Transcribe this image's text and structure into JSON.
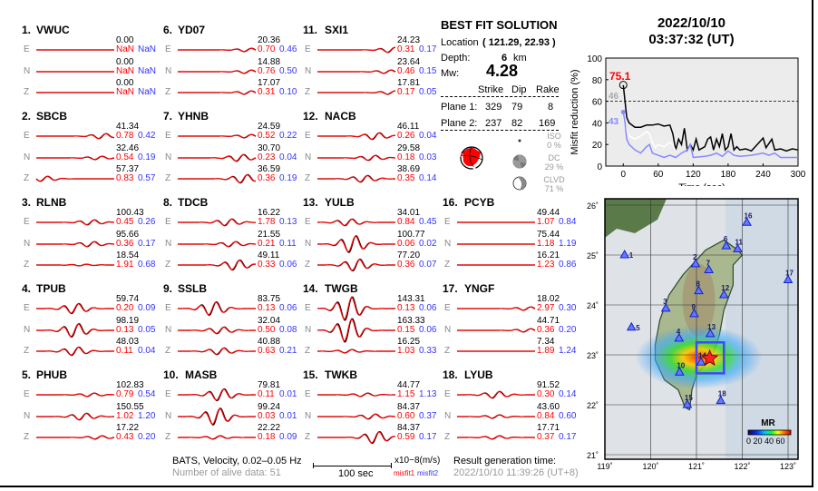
{
  "stations": [
    {
      "num": "1.",
      "name": "VWUC",
      "channels": [
        {
          "comp": "E",
          "peak": "0.00",
          "misfit1": "NaN",
          "misfit2": "NaN"
        },
        {
          "comp": "N",
          "peak": "0.00",
          "misfit1": "NaN",
          "misfit2": "NaN"
        },
        {
          "comp": "Z",
          "peak": "0.00",
          "misfit1": "NaN",
          "misfit2": "NaN"
        }
      ]
    },
    {
      "num": "2.",
      "name": "SBCB",
      "channels": [
        {
          "comp": "E",
          "peak": "41.34",
          "misfit1": "0.78",
          "misfit2": "0.42"
        },
        {
          "comp": "N",
          "peak": "32.46",
          "misfit1": "0.54",
          "misfit2": "0.19"
        },
        {
          "comp": "Z",
          "peak": "57.37",
          "misfit1": "0.83",
          "misfit2": "0.57"
        }
      ]
    },
    {
      "num": "3.",
      "name": "RLNB",
      "channels": [
        {
          "comp": "E",
          "peak": "100.43",
          "misfit1": "0.45",
          "misfit2": "0.26"
        },
        {
          "comp": "N",
          "peak": "95.66",
          "misfit1": "0.36",
          "misfit2": "0.17"
        },
        {
          "comp": "Z",
          "peak": "18.54",
          "misfit1": "1.91",
          "misfit2": "0.68"
        }
      ]
    },
    {
      "num": "4.",
      "name": "TPUB",
      "channels": [
        {
          "comp": "E",
          "peak": "59.74",
          "misfit1": "0.20",
          "misfit2": "0.09"
        },
        {
          "comp": "N",
          "peak": "98.19",
          "misfit1": "0.13",
          "misfit2": "0.05"
        },
        {
          "comp": "Z",
          "peak": "48.03",
          "misfit1": "0.11",
          "misfit2": "0.04"
        }
      ]
    },
    {
      "num": "5.",
      "name": "PHUB",
      "channels": [
        {
          "comp": "E",
          "peak": "102.83",
          "misfit1": "0.79",
          "misfit2": "0.54"
        },
        {
          "comp": "N",
          "peak": "150.55",
          "misfit1": "1.02",
          "misfit2": "1.20"
        },
        {
          "comp": "Z",
          "peak": "17.22",
          "misfit1": "0.43",
          "misfit2": "0.20"
        }
      ]
    },
    {
      "num": "6.",
      "name": "YD07",
      "channels": [
        {
          "comp": "E",
          "peak": "20.36",
          "misfit1": "0.70",
          "misfit2": "0.46"
        },
        {
          "comp": "N",
          "peak": "14.88",
          "misfit1": "0.76",
          "misfit2": "0.50"
        },
        {
          "comp": "Z",
          "peak": "17.07",
          "misfit1": "0.31",
          "misfit2": "0.10"
        }
      ]
    },
    {
      "num": "7.",
      "name": "YHNB",
      "channels": [
        {
          "comp": "E",
          "peak": "24.59",
          "misfit1": "0.52",
          "misfit2": "0.22"
        },
        {
          "comp": "N",
          "peak": "30.70",
          "misfit1": "0.23",
          "misfit2": "0.04"
        },
        {
          "comp": "Z",
          "peak": "36.59",
          "misfit1": "0.36",
          "misfit2": "0.19"
        }
      ]
    },
    {
      "num": "8.",
      "name": "TDCB",
      "channels": [
        {
          "comp": "E",
          "peak": "16.22",
          "misfit1": "1.78",
          "misfit2": "0.13"
        },
        {
          "comp": "N",
          "peak": "21.55",
          "misfit1": "0.21",
          "misfit2": "0.11"
        },
        {
          "comp": "Z",
          "peak": "49.11",
          "misfit1": "0.33",
          "misfit2": "0.06"
        }
      ]
    },
    {
      "num": "9.",
      "name": "SSLB",
      "channels": [
        {
          "comp": "E",
          "peak": "83.75",
          "misfit1": "0.13",
          "misfit2": "0.06"
        },
        {
          "comp": "N",
          "peak": "32.04",
          "misfit1": "0.50",
          "misfit2": "0.08"
        },
        {
          "comp": "Z",
          "peak": "40.88",
          "misfit1": "0.63",
          "misfit2": "0.21"
        }
      ]
    },
    {
      "num": "10.",
      "name": "MASB",
      "channels": [
        {
          "comp": "E",
          "peak": "79.81",
          "misfit1": "0.11",
          "misfit2": "0.01"
        },
        {
          "comp": "N",
          "peak": "99.24",
          "misfit1": "0.03",
          "misfit2": "0.01"
        },
        {
          "comp": "Z",
          "peak": "22.22",
          "misfit1": "0.18",
          "misfit2": "0.09"
        }
      ]
    },
    {
      "num": "11.",
      "name": "SXI1",
      "channels": [
        {
          "comp": "E",
          "peak": "24.23",
          "misfit1": "0.31",
          "misfit2": "0.17"
        },
        {
          "comp": "N",
          "peak": "23.64",
          "misfit1": "0.46",
          "misfit2": "0.15"
        },
        {
          "comp": "Z",
          "peak": "17.81",
          "misfit1": "0.17",
          "misfit2": "0.05"
        }
      ]
    },
    {
      "num": "12.",
      "name": "NACB",
      "channels": [
        {
          "comp": "E",
          "peak": "46.11",
          "misfit1": "0.26",
          "misfit2": "0.04"
        },
        {
          "comp": "N",
          "peak": "29.58",
          "misfit1": "0.18",
          "misfit2": "0.03"
        },
        {
          "comp": "Z",
          "peak": "38.69",
          "misfit1": "0.35",
          "misfit2": "0.14"
        }
      ]
    },
    {
      "num": "13.",
      "name": "YULB",
      "channels": [
        {
          "comp": "E",
          "peak": "34.01",
          "misfit1": "0.84",
          "misfit2": "0.45"
        },
        {
          "comp": "N",
          "peak": "100.77",
          "misfit1": "0.06",
          "misfit2": "0.02"
        },
        {
          "comp": "Z",
          "peak": "77.20",
          "misfit1": "0.36",
          "misfit2": "0.07"
        }
      ]
    },
    {
      "num": "14.",
      "name": "TWGB",
      "channels": [
        {
          "comp": "E",
          "peak": "143.31",
          "misfit1": "0.13",
          "misfit2": "0.06"
        },
        {
          "comp": "N",
          "peak": "163.33",
          "misfit1": "0.15",
          "misfit2": "0.06"
        },
        {
          "comp": "Z",
          "peak": "16.25",
          "misfit1": "1.03",
          "misfit2": "0.33"
        }
      ]
    },
    {
      "num": "15.",
      "name": "TWKB",
      "channels": [
        {
          "comp": "E",
          "peak": "44.77",
          "misfit1": "1.15",
          "misfit2": "1.13"
        },
        {
          "comp": "N",
          "peak": "84.37",
          "misfit1": "0.60",
          "misfit2": "0.37"
        },
        {
          "comp": "Z",
          "peak": "84.37",
          "misfit1": "0.59",
          "misfit2": "0.17"
        }
      ]
    },
    {
      "num": "16.",
      "name": "PCYB",
      "channels": [
        {
          "comp": "E",
          "peak": "49.44",
          "misfit1": "1.07",
          "misfit2": "0.84"
        },
        {
          "comp": "N",
          "peak": "75.44",
          "misfit1": "1.18",
          "misfit2": "1.19"
        },
        {
          "comp": "Z",
          "peak": "16.21",
          "misfit1": "1.23",
          "misfit2": "0.86"
        }
      ]
    },
    {
      "num": "17.",
      "name": "YNGF",
      "channels": [
        {
          "comp": "E",
          "peak": "18.02",
          "misfit1": "2.97",
          "misfit2": "0.30"
        },
        {
          "comp": "N",
          "peak": "44.71",
          "misfit1": "0.36",
          "misfit2": "0.20"
        },
        {
          "comp": "Z",
          "peak": "7.34",
          "misfit1": "1.89",
          "misfit2": "1.24"
        }
      ]
    },
    {
      "num": "18.",
      "name": "LYUB",
      "channels": [
        {
          "comp": "E",
          "peak": "91.52",
          "misfit1": "0.30",
          "misfit2": "0.14"
        },
        {
          "comp": "N",
          "peak": "43.60",
          "misfit1": "0.84",
          "misfit2": "0.60"
        },
        {
          "comp": "Z",
          "peak": "17.71",
          "misfit1": "0.37",
          "misfit2": "0.17"
        }
      ]
    }
  ],
  "solution": {
    "title": "BEST FIT SOLUTION",
    "location_label": "Location",
    "location_value": "( 121.29,  22.93 )",
    "depth_label": "Depth:",
    "depth_value": "6",
    "depth_unit": "km",
    "mw_label": "Mw:",
    "mw_value": "4.28",
    "headers": [
      "Strike",
      "Dip",
      "Rake"
    ],
    "planes": [
      {
        "label": "Plane 1:",
        "strike": "329",
        "dip": "79",
        "rake": "8"
      },
      {
        "label": "Plane 2:",
        "strike": "237",
        "dip": "82",
        "rake": "169"
      }
    ],
    "components": [
      {
        "label": "ISO",
        "percent": "0 %"
      },
      {
        "label": "DC",
        "percent": "29 %"
      },
      {
        "label": "CLVD",
        "percent": "71 %"
      }
    ]
  },
  "footer": {
    "dataset": "BATS, Velocity, 0.02–0.05 Hz",
    "alive": "Number of alive data: 51",
    "scale_label": "100 sec",
    "units": "x10−8(m/s)",
    "misfit1": "misfit1",
    "misfit2": "misfit2",
    "gen_label": "Result generation time:",
    "gen_time": "2022/10/10 11:39:26 (UT+8)"
  },
  "event": {
    "date": "2022/10/10",
    "time": "03:37:32  (UT)"
  },
  "chart_data": {
    "type": "line",
    "xlabel": "Time (sec)",
    "ylabel": "Misfit reduction (%)",
    "xlim": [
      -30,
      300
    ],
    "ylim": [
      0,
      100
    ],
    "xticks": [
      0,
      60,
      120,
      180,
      240,
      300
    ],
    "yticks": [
      0,
      20,
      40,
      60,
      80,
      100
    ],
    "threshold": 60,
    "annotations": [
      {
        "text": "75.1",
        "color": "#ff0000"
      },
      {
        "text": "46",
        "color": "#aaaaaa"
      },
      {
        "text": "43",
        "color": "#8888ff"
      }
    ],
    "series": [
      {
        "color": "#000000",
        "x": [
          0,
          3,
          6,
          10,
          20,
          30,
          40,
          50,
          60,
          70,
          80,
          85,
          90,
          95,
          100,
          105,
          110,
          115,
          120,
          125,
          130,
          140,
          145,
          150,
          155,
          160,
          165,
          170,
          175,
          180,
          185,
          190,
          195,
          200,
          210,
          220,
          230,
          240,
          245,
          255,
          260,
          270,
          280,
          290,
          300
        ],
        "y": [
          75,
          60,
          45,
          40,
          36,
          36,
          38,
          38,
          39,
          37,
          38,
          30,
          15,
          25,
          20,
          35,
          15,
          20,
          15,
          25,
          15,
          18,
          25,
          27,
          15,
          25,
          18,
          30,
          15,
          18,
          30,
          15,
          18,
          15,
          16,
          14,
          20,
          26,
          17,
          25,
          15,
          16,
          14,
          16,
          15
        ]
      },
      {
        "color": "#ffffff",
        "x": [
          0,
          5,
          10,
          20,
          30,
          40,
          45,
          50,
          55,
          60,
          70,
          80,
          85,
          90
        ],
        "y": [
          46,
          35,
          28,
          25,
          28,
          32,
          30,
          22,
          17,
          20,
          18,
          22,
          20,
          14
        ]
      },
      {
        "color": "#8888ff",
        "x": [
          0,
          3,
          6,
          10,
          20,
          30,
          40,
          45,
          50,
          60,
          70,
          80,
          90,
          100,
          110,
          115,
          120,
          140,
          150,
          160,
          170,
          180,
          190,
          200,
          220,
          240,
          250,
          260,
          270,
          300
        ],
        "y": [
          50,
          40,
          25,
          20,
          15,
          12,
          18,
          20,
          12,
          10,
          8,
          10,
          8,
          12,
          15,
          20,
          8,
          9,
          10,
          12,
          9,
          14,
          10,
          9,
          10,
          12,
          10,
          12,
          8,
          8
        ]
      }
    ]
  },
  "map": {
    "lon_ticks": [
      "119˚",
      "120˚",
      "121˚",
      "122˚",
      "123˚"
    ],
    "lat_ticks": [
      "26˚",
      "25˚",
      "24˚",
      "23˚",
      "22˚",
      "21˚"
    ],
    "colorbar_title": "MR",
    "colorbar_labels": "0 20 40 60",
    "epicenter": {
      "lon": 121.29,
      "lat": 22.93
    },
    "stations": [
      {
        "id": "1",
        "lon": 119.43,
        "lat": 25.0
      },
      {
        "id": "2",
        "lon": 120.98,
        "lat": 24.82
      },
      {
        "id": "3",
        "lon": 120.33,
        "lat": 23.93
      },
      {
        "id": "4",
        "lon": 120.62,
        "lat": 23.33
      },
      {
        "id": "5",
        "lon": 119.58,
        "lat": 23.55
      },
      {
        "id": "6",
        "lon": 121.65,
        "lat": 25.18
      },
      {
        "id": "7",
        "lon": 121.27,
        "lat": 24.7
      },
      {
        "id": "8",
        "lon": 121.05,
        "lat": 24.28
      },
      {
        "id": "9",
        "lon": 120.95,
        "lat": 23.82
      },
      {
        "id": "10",
        "lon": 120.63,
        "lat": 22.65
      },
      {
        "id": "11",
        "lon": 121.9,
        "lat": 25.12
      },
      {
        "id": "12",
        "lon": 121.6,
        "lat": 24.2
      },
      {
        "id": "13",
        "lon": 121.3,
        "lat": 23.42
      },
      {
        "id": "14",
        "lon": 121.1,
        "lat": 22.85
      },
      {
        "id": "15",
        "lon": 120.8,
        "lat": 22.0
      },
      {
        "id": "16",
        "lon": 122.1,
        "lat": 25.65
      },
      {
        "id": "17",
        "lon": 123.0,
        "lat": 24.5
      },
      {
        "id": "18",
        "lon": 121.53,
        "lat": 22.08
      }
    ]
  }
}
